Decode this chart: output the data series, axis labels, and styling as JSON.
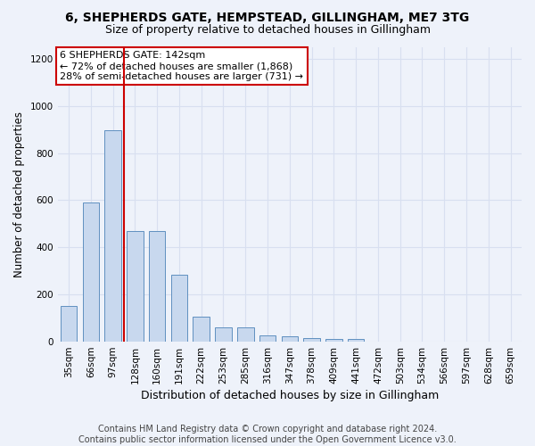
{
  "title1": "6, SHEPHERDS GATE, HEMPSTEAD, GILLINGHAM, ME7 3TG",
  "title2": "Size of property relative to detached houses in Gillingham",
  "xlabel": "Distribution of detached houses by size in Gillingham",
  "ylabel": "Number of detached properties",
  "categories": [
    "35sqm",
    "66sqm",
    "97sqm",
    "128sqm",
    "160sqm",
    "191sqm",
    "222sqm",
    "253sqm",
    "285sqm",
    "316sqm",
    "347sqm",
    "378sqm",
    "409sqm",
    "441sqm",
    "472sqm",
    "503sqm",
    "534sqm",
    "566sqm",
    "597sqm",
    "628sqm",
    "659sqm"
  ],
  "values": [
    150,
    590,
    895,
    470,
    470,
    285,
    105,
    62,
    62,
    28,
    22,
    14,
    10,
    10,
    0,
    0,
    0,
    0,
    0,
    0,
    0
  ],
  "bar_color": "#c8d8ee",
  "bar_edge_color": "#6090c0",
  "vline_x": 2.5,
  "annotation_text": "6 SHEPHERDS GATE: 142sqm\n← 72% of detached houses are smaller (1,868)\n28% of semi-detached houses are larger (731) →",
  "annotation_box_color": "#ffffff",
  "annotation_box_edge_color": "#cc0000",
  "vline_color": "#cc0000",
  "ylim": [
    0,
    1250
  ],
  "yticks": [
    0,
    200,
    400,
    600,
    800,
    1000,
    1200
  ],
  "footnote": "Contains HM Land Registry data © Crown copyright and database right 2024.\nContains public sector information licensed under the Open Government Licence v3.0.",
  "bg_color": "#eef2fa",
  "plot_bg_color": "#eef2fa",
  "grid_color": "#d8dff0",
  "title1_fontsize": 10,
  "title2_fontsize": 9,
  "xlabel_fontsize": 9,
  "ylabel_fontsize": 8.5,
  "tick_fontsize": 7.5,
  "annotation_fontsize": 8,
  "footnote_fontsize": 7
}
